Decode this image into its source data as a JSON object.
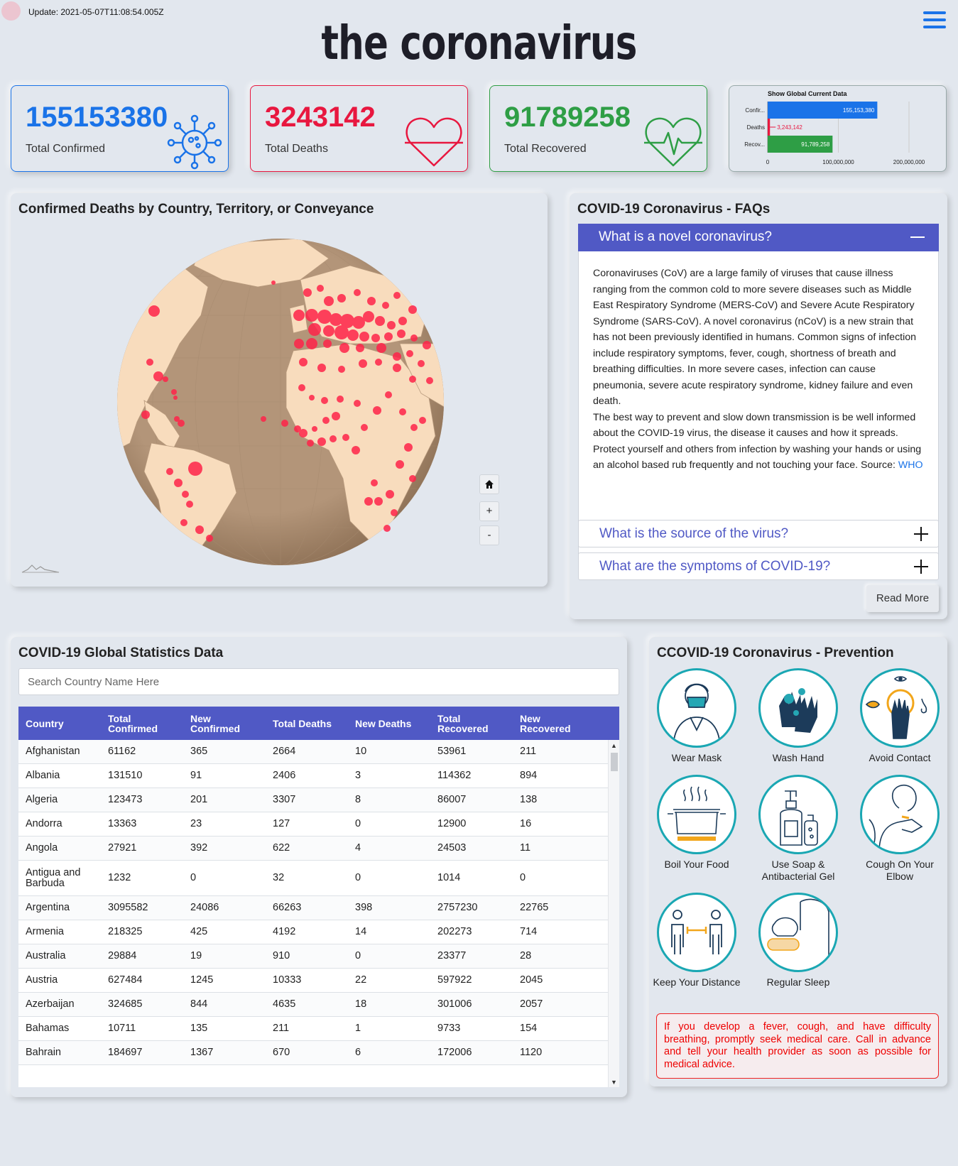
{
  "header": {
    "update_text": "Update: 2021-05-07T11:08:54.005Z",
    "title": "the coronavirus"
  },
  "stats": {
    "confirmed": {
      "value": "155153380",
      "label": "Total Confirmed",
      "color": "#1a73e8"
    },
    "deaths": {
      "value": "3243142",
      "label": "Total Deaths",
      "color": "#e8173f"
    },
    "recovered": {
      "value": "91789258",
      "label": "Total Recovered",
      "color": "#2e9e45"
    }
  },
  "chart_data": {
    "type": "bar",
    "orientation": "horizontal",
    "title": "Show Global Current Data",
    "categories": [
      "Confir...",
      "Deaths",
      "Recov..."
    ],
    "values": [
      155153380,
      3243142,
      91789258
    ],
    "value_labels": [
      "155,153,380",
      "3,243,142",
      "91,789,258"
    ],
    "colors": [
      "#1a73e8",
      "#e8173f",
      "#2e9e45"
    ],
    "xlim": [
      0,
      200000000
    ],
    "xticks": [
      "0",
      "100,000,000",
      "200,000,000"
    ],
    "grid": true
  },
  "map": {
    "title": "Confirmed Deaths by Country, Territory, or Conveyance",
    "home_label": "⌂",
    "zoom_in": "+",
    "zoom_out": "-"
  },
  "faq": {
    "title": "COVID-19 Coronavirus - FAQs",
    "open_question": "What is a novel coronavirus?",
    "open_answer_p1": "Coronaviruses (CoV) are a large family of viruses that cause illness ranging from the common cold to more severe diseases such as Middle East Respiratory Syndrome (MERS-CoV) and Severe Acute Respiratory Syndrome (SARS-CoV). A novel coronavirus (nCoV) is a new strain that has not been previously identified in humans. Common signs of infection include respiratory symptoms, fever, cough, shortness of breath and breathing difficulties. In more severe cases, infection can cause pneumonia, severe acute respiratory syndrome, kidney failure and even death.",
    "open_answer_p2": "The best way to prevent and slow down transmission is be well informed about the COVID-19 virus, the disease it causes and how it spreads. Protect yourself and others from infection by washing your hands or using an alcohol based rub frequently and not touching your face. Source: ",
    "source_link": "WHO",
    "questions": [
      "What is the source of the virus?",
      "What are the symptoms of COVID-19?"
    ],
    "read_more": "Read More"
  },
  "table": {
    "title": "COVID-19 Global Statistics Data",
    "search_placeholder": "Search Country Name Here",
    "headers": [
      "Country",
      "Total Confirmed",
      "New Confirmed",
      "Total Deaths",
      "New Deaths",
      "Total Recovered",
      "New Recovered"
    ],
    "rows": [
      [
        "Afghanistan",
        "61162",
        "365",
        "2664",
        "10",
        "53961",
        "211"
      ],
      [
        "Albania",
        "131510",
        "91",
        "2406",
        "3",
        "114362",
        "894"
      ],
      [
        "Algeria",
        "123473",
        "201",
        "3307",
        "8",
        "86007",
        "138"
      ],
      [
        "Andorra",
        "13363",
        "23",
        "127",
        "0",
        "12900",
        "16"
      ],
      [
        "Angola",
        "27921",
        "392",
        "622",
        "4",
        "24503",
        "11"
      ],
      [
        "Antigua and Barbuda",
        "1232",
        "0",
        "32",
        "0",
        "1014",
        "0"
      ],
      [
        "Argentina",
        "3095582",
        "24086",
        "66263",
        "398",
        "2757230",
        "22765"
      ],
      [
        "Armenia",
        "218325",
        "425",
        "4192",
        "14",
        "202273",
        "714"
      ],
      [
        "Australia",
        "29884",
        "19",
        "910",
        "0",
        "23377",
        "28"
      ],
      [
        "Austria",
        "627484",
        "1245",
        "10333",
        "22",
        "597922",
        "2045"
      ],
      [
        "Azerbaijan",
        "324685",
        "844",
        "4635",
        "18",
        "301006",
        "2057"
      ],
      [
        "Bahamas",
        "10711",
        "135",
        "211",
        "1",
        "9733",
        "154"
      ],
      [
        "Bahrain",
        "184697",
        "1367",
        "670",
        "6",
        "172006",
        "1120"
      ]
    ]
  },
  "prevention": {
    "title": "CCOVID-19 Coronavirus - Prevention",
    "items": [
      "Wear Mask",
      "Wash Hand",
      "Avoid Contact",
      "Boil Your Food",
      "Use Soap & Antibacterial Gel",
      "Cough On Your Elbow",
      "Keep Your Distance",
      "Regular Sleep"
    ],
    "warning": "If you develop a fever, cough, and have difficulty breathing, promptly seek medical care. Call in advance and tell your health provider as soon as possible for medical advice."
  }
}
